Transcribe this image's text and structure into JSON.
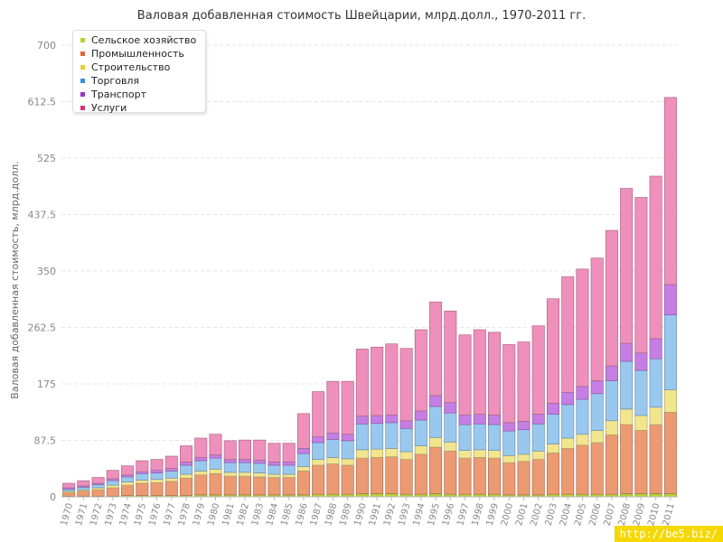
{
  "chart_data": {
    "type": "bar",
    "stacked": true,
    "title": "Валовая добавленная стоимость Швейцарии, млрд.долл., 1970-2011 гг.",
    "ylabel": "Валовая добавленная стоимость, млрд.долл.",
    "xlabel": "",
    "ylim": [
      0,
      700
    ],
    "yticks": [
      "0",
      "87.5",
      "175",
      "262.5",
      "350",
      "437.5",
      "525",
      "612.5",
      "700"
    ],
    "grid": true,
    "legend_position": "top-left",
    "categories": [
      "1970",
      "1971",
      "1972",
      "1973",
      "1974",
      "1975",
      "1976",
      "1977",
      "1978",
      "1979",
      "1980",
      "1981",
      "1982",
      "1983",
      "1984",
      "1985",
      "1986",
      "1987",
      "1988",
      "1989",
      "1990",
      "1991",
      "1992",
      "1993",
      "1994",
      "1995",
      "1996",
      "1997",
      "1998",
      "1999",
      "2000",
      "2001",
      "2002",
      "2003",
      "2004",
      "2005",
      "2006",
      "2007",
      "2008",
      "2009",
      "2010",
      "2011"
    ],
    "series": [
      {
        "name": "Сельское хозяйство",
        "color": "#b5d336",
        "values": [
          1,
          1,
          1,
          1,
          2,
          2,
          2,
          2,
          2,
          3,
          3,
          3,
          3,
          3,
          3,
          3,
          3,
          4,
          4,
          4,
          5,
          5,
          5,
          4,
          4,
          5,
          4,
          4,
          4,
          4,
          3,
          3,
          3,
          4,
          4,
          4,
          4,
          4,
          5,
          5,
          5,
          5
        ]
      },
      {
        "name": "Промышленность",
        "color": "#ec9a72",
        "values": [
          6,
          8,
          10,
          13,
          16,
          19,
          20,
          22,
          27,
          31,
          33,
          29,
          29,
          28,
          27,
          27,
          37,
          45,
          47,
          45,
          55,
          56,
          57,
          54,
          62,
          72,
          67,
          56,
          57,
          56,
          50,
          52,
          55,
          64,
          71,
          76,
          80,
          92,
          107,
          98,
          107,
          126
        ]
      },
      {
        "name": "Строительство",
        "color": "#f1e58e",
        "values": [
          2,
          2,
          3,
          4,
          5,
          5,
          5,
          5,
          6,
          6,
          7,
          6,
          6,
          6,
          5,
          5,
          7,
          9,
          10,
          10,
          13,
          13,
          13,
          12,
          13,
          15,
          14,
          12,
          12,
          12,
          11,
          11,
          13,
          14,
          16,
          17,
          19,
          22,
          24,
          23,
          27,
          35
        ]
      },
      {
        "name": "Торговля",
        "color": "#99c8ef",
        "values": [
          3,
          4,
          5,
          7,
          8,
          10,
          10,
          11,
          14,
          16,
          17,
          15,
          15,
          15,
          14,
          14,
          20,
          26,
          28,
          28,
          40,
          40,
          40,
          36,
          40,
          48,
          45,
          40,
          40,
          40,
          38,
          38,
          42,
          46,
          52,
          54,
          57,
          62,
          74,
          70,
          75,
          116
        ]
      },
      {
        "name": "Транспорт",
        "color": "#c57ee3",
        "values": [
          2,
          2,
          2,
          3,
          3,
          3,
          4,
          4,
          5,
          5,
          5,
          5,
          5,
          5,
          5,
          5,
          8,
          9,
          10,
          10,
          12,
          12,
          12,
          12,
          14,
          17,
          16,
          15,
          15,
          15,
          13,
          13,
          15,
          17,
          19,
          20,
          20,
          23,
          28,
          27,
          31,
          47
        ]
      },
      {
        "name": "Услуги",
        "color": "#ee90bb",
        "values": [
          7,
          8,
          9,
          13,
          14,
          17,
          17,
          19,
          25,
          30,
          32,
          29,
          30,
          31,
          29,
          29,
          54,
          70,
          80,
          82,
          104,
          106,
          110,
          112,
          126,
          145,
          142,
          124,
          131,
          128,
          121,
          123,
          137,
          162,
          179,
          182,
          190,
          210,
          240,
          241,
          252,
          290
        ]
      }
    ]
  },
  "watermark": "http://be5.biz/"
}
